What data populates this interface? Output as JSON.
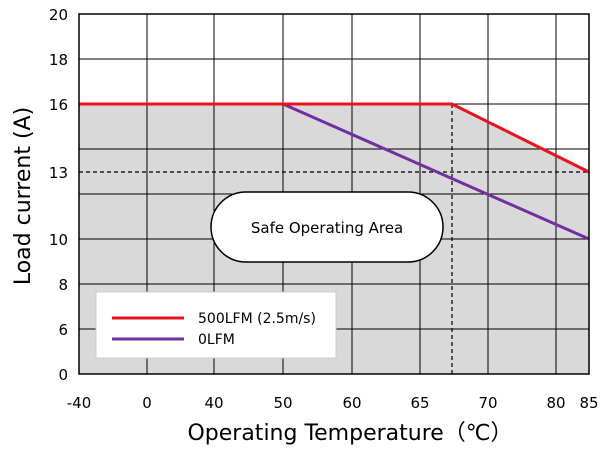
{
  "chart_data": {
    "type": "line",
    "title": "",
    "xlabel": "Operating Temperature（℃）",
    "ylabel": "Load current  (A)",
    "x_ticks": [
      "-40",
      "0",
      "40",
      "50",
      "60",
      "65",
      "70",
      "80",
      "85"
    ],
    "y_ticks": [
      "0",
      "6",
      "8",
      "10",
      "13",
      "16",
      "18",
      "20"
    ],
    "grid": true,
    "legend_position": "bottom-left",
    "series": [
      {
        "name": "500LFM (2.5m/s)",
        "color": "#e8141c",
        "x": [
          -40,
          65,
          85
        ],
        "y": [
          16,
          16,
          13
        ]
      },
      {
        "name": "0LFM",
        "color": "#7030a0",
        "x": [
          -40,
          40,
          85
        ],
        "y": [
          16,
          16,
          10
        ]
      }
    ],
    "reference_lines": [
      {
        "type": "horizontal",
        "y": 13,
        "x_from": -40,
        "x_to": 85,
        "style": "dashed"
      },
      {
        "type": "vertical",
        "x": 65,
        "y_from": 0,
        "y_to": 16,
        "style": "dashed"
      }
    ],
    "shaded_area": {
      "color": "#d9d9d9",
      "label": "Safe Operating Area"
    },
    "annotation": "Safe Operating Area"
  }
}
